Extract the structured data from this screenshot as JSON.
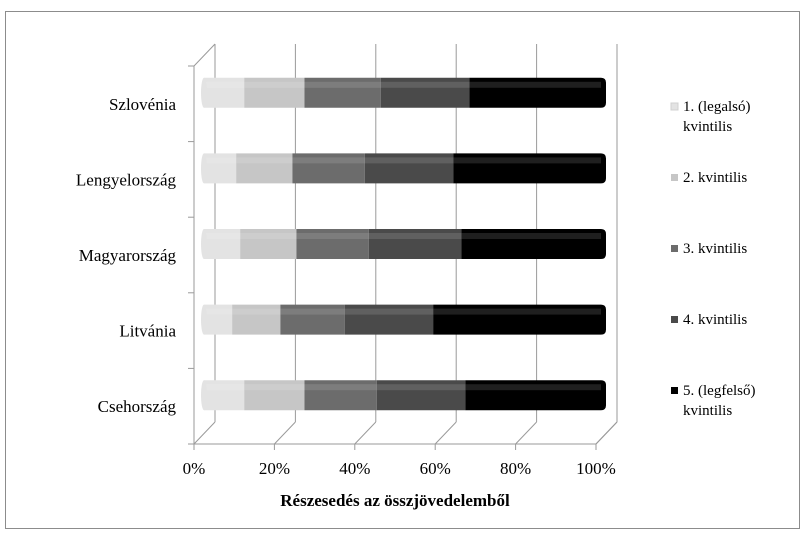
{
  "chart_data": {
    "type": "bar",
    "orientation": "horizontal",
    "stacked": "percent",
    "style": "3d-cylinder",
    "categories": [
      "Szlovénia",
      "Lengyelország",
      "Magyarország",
      "Litvánia",
      "Csehország"
    ],
    "series": [
      {
        "name": "1. (legalsó) kvintilis",
        "color": "#e3e3e3",
        "values": [
          10,
          8,
          9,
          7,
          10
        ]
      },
      {
        "name": "2. kvintilis",
        "color": "#c6c6c6",
        "values": [
          15,
          14,
          14,
          12,
          15
        ]
      },
      {
        "name": "3. kvintilis",
        "color": "#6c6c6c",
        "values": [
          19,
          18,
          18,
          16,
          18
        ]
      },
      {
        "name": "4. kvintilis",
        "color": "#4a4a4a",
        "values": [
          22,
          22,
          23,
          22,
          22
        ]
      },
      {
        "name": "5. (legfelső) kvintilis",
        "color": "#000000",
        "values": [
          34,
          38,
          36,
          43,
          35
        ]
      }
    ],
    "xlabel": "Részesedés az összjövedelemből",
    "xticks": [
      "0%",
      "20%",
      "40%",
      "60%",
      "80%",
      "100%"
    ],
    "xlim": [
      0,
      100
    ],
    "grid": true,
    "legend": "right"
  }
}
